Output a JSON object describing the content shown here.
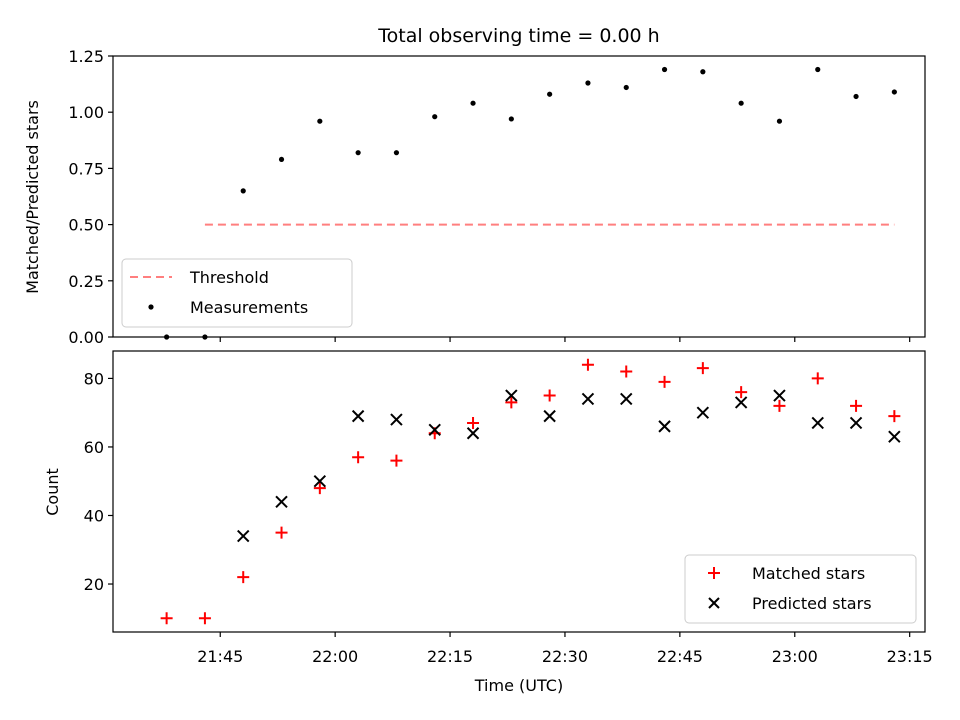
{
  "chart_data": [
    {
      "type": "scatter",
      "title": "Total observing time = 0.00 h",
      "ylabel": "Matched/Predicted stars",
      "xlabel": "",
      "xlim": [
        "21:31",
        "23:17"
      ],
      "ylim": [
        0,
        1.25
      ],
      "yticks": [
        "0.00",
        "0.25",
        "0.50",
        "0.75",
        "1.00",
        "1.25"
      ],
      "yticks_values": [
        0,
        0.25,
        0.5,
        0.75,
        1.0,
        1.25
      ],
      "xticks_values": [
        "21:45",
        "22:00",
        "22:15",
        "22:30",
        "22:45",
        "23:00",
        "23:15"
      ],
      "threshold": {
        "name": "Threshold",
        "value": 0.5,
        "x_start": "21:43",
        "x_end": "23:13",
        "color": "#ff7f7f"
      },
      "series": [
        {
          "name": "Measurements",
          "color": "#000000",
          "x": [
            "21:38",
            "21:43",
            "21:48",
            "21:53",
            "21:58",
            "22:03",
            "22:08",
            "22:13",
            "22:18",
            "22:23",
            "22:28",
            "22:33",
            "22:38",
            "22:43",
            "22:48",
            "22:53",
            "22:58",
            "23:03",
            "23:08",
            "23:13"
          ],
          "y": [
            0.0,
            0.0,
            0.65,
            0.79,
            0.96,
            0.82,
            0.82,
            0.98,
            1.04,
            0.97,
            1.08,
            1.13,
            1.11,
            1.19,
            1.18,
            1.04,
            0.96,
            1.19,
            1.07,
            1.09
          ]
        }
      ],
      "legend": {
        "placement": "lower-left",
        "entries": [
          "Threshold",
          "Measurements"
        ]
      },
      "grid": false
    },
    {
      "type": "scatter",
      "title": "",
      "ylabel": "Count",
      "xlabel": "Time (UTC)",
      "xlim": [
        "21:31",
        "23:17"
      ],
      "ylim": [
        6,
        88
      ],
      "yticks": [
        "20",
        "40",
        "60",
        "80"
      ],
      "yticks_values": [
        20,
        40,
        60,
        80
      ],
      "xticks": [
        "21:45",
        "22:00",
        "22:15",
        "22:30",
        "22:45",
        "23:00",
        "23:15"
      ],
      "xticks_values": [
        "21:45",
        "22:00",
        "22:15",
        "22:30",
        "22:45",
        "23:00",
        "23:15"
      ],
      "series": [
        {
          "name": "Matched stars",
          "marker": "+",
          "color": "#ff0000",
          "x": [
            "21:38",
            "21:43",
            "21:48",
            "21:53",
            "21:58",
            "22:03",
            "22:08",
            "22:13",
            "22:18",
            "22:23",
            "22:28",
            "22:33",
            "22:38",
            "22:43",
            "22:48",
            "22:53",
            "22:58",
            "23:03",
            "23:08",
            "23:13"
          ],
          "y": [
            10,
            10,
            22,
            35,
            48,
            57,
            56,
            64,
            67,
            73,
            75,
            84,
            82,
            79,
            83,
            76,
            72,
            80,
            72,
            69
          ]
        },
        {
          "name": "Predicted stars",
          "marker": "x",
          "color": "#000000",
          "x": [
            "21:48",
            "21:53",
            "21:58",
            "22:03",
            "22:08",
            "22:13",
            "22:18",
            "22:23",
            "22:28",
            "22:33",
            "22:38",
            "22:43",
            "22:48",
            "22:53",
            "22:58",
            "23:03",
            "23:08",
            "23:13"
          ],
          "y": [
            34,
            44,
            50,
            69,
            68,
            65,
            64,
            75,
            69,
            74,
            74,
            66,
            70,
            73,
            75,
            67,
            67,
            63
          ]
        }
      ],
      "legend": {
        "placement": "lower-right",
        "entries": [
          "Matched stars",
          "Predicted stars"
        ]
      },
      "grid": false
    }
  ]
}
